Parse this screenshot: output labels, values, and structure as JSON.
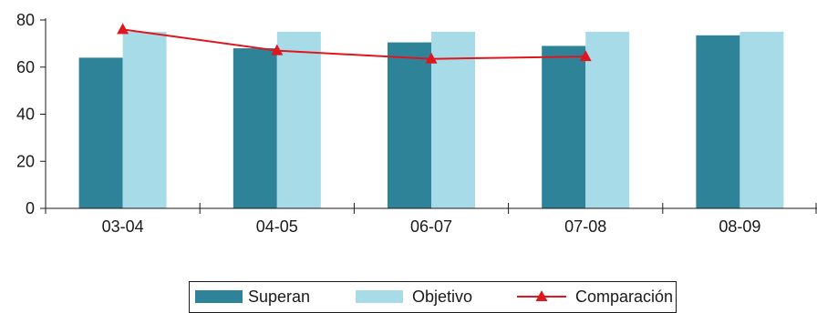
{
  "chart_data": {
    "type": "bar",
    "categories": [
      "03-04",
      "04-05",
      "06-07",
      "07-08",
      "08-09"
    ],
    "series": [
      {
        "name": "Superan",
        "type": "bar",
        "color": "#2e8399",
        "values": [
          64,
          68,
          70.5,
          69,
          73.5
        ]
      },
      {
        "name": "Objetivo",
        "type": "bar",
        "color": "#a8dbe8",
        "values": [
          75,
          75,
          75,
          75,
          75
        ]
      },
      {
        "name": "Comparación",
        "type": "line",
        "marker": "triangle",
        "color": "#e0161f",
        "values": [
          76,
          67,
          63.5,
          64.5,
          null
        ]
      }
    ],
    "ylim": [
      0,
      80
    ],
    "yticks": [
      0,
      20,
      40,
      60,
      80
    ],
    "grid": false,
    "legend_position": "bottom-center"
  }
}
